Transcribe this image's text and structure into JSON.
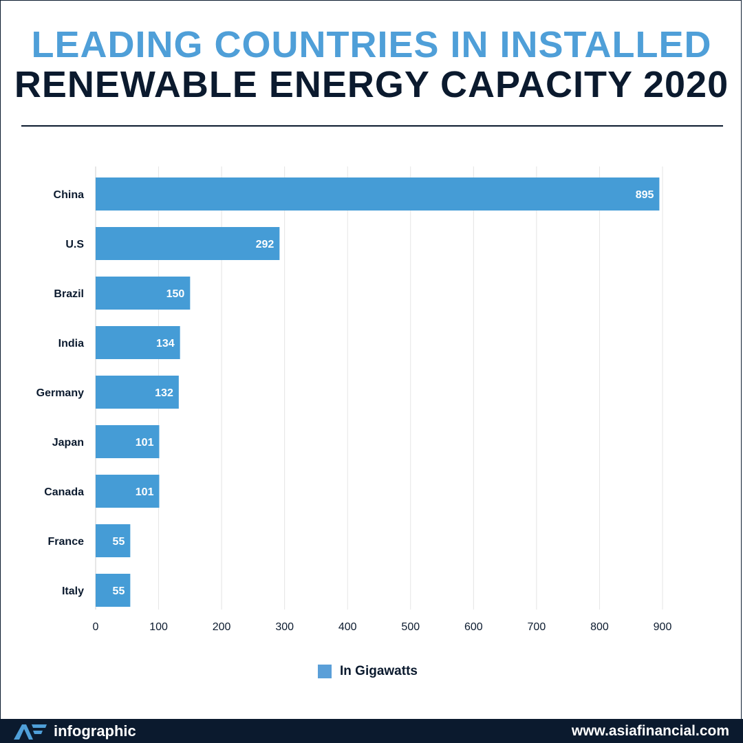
{
  "header": {
    "title_line1": "LEADING COUNTRIES IN INSTALLED",
    "title_line2": "RENEWABLE ENERGY CAPACITY 2020"
  },
  "legend": {
    "label": "In Gigawatts",
    "color": "#5a9fd8"
  },
  "footer": {
    "logo_icon": "af-logo-icon",
    "brand": "infographic",
    "url": "www.asiafinancial.com"
  },
  "chart_data": {
    "type": "bar",
    "orientation": "horizontal",
    "categories": [
      "China",
      "U.S",
      "Brazil",
      "India",
      "Germany",
      "Japan",
      "Canada",
      "France",
      "Italy"
    ],
    "series": [
      {
        "name": "In Gigawatts",
        "values": [
          895,
          292,
          150,
          134,
          132,
          101,
          101,
          55,
          55
        ]
      }
    ],
    "data_labels": [
      "895",
      "292",
      "150",
      "134",
      "132",
      "101",
      "101",
      "55",
      "55"
    ],
    "x_ticks": [
      "0",
      "100",
      "200",
      "300",
      "400",
      "500",
      "600",
      "700",
      "800",
      "900"
    ],
    "xlim": [
      0,
      900
    ],
    "grid": "vertical",
    "legend_position": "bottom",
    "bar_color": "#459cd6",
    "title": "LEADING COUNTRIES IN INSTALLED RENEWABLE ENERGY CAPACITY 2020"
  }
}
